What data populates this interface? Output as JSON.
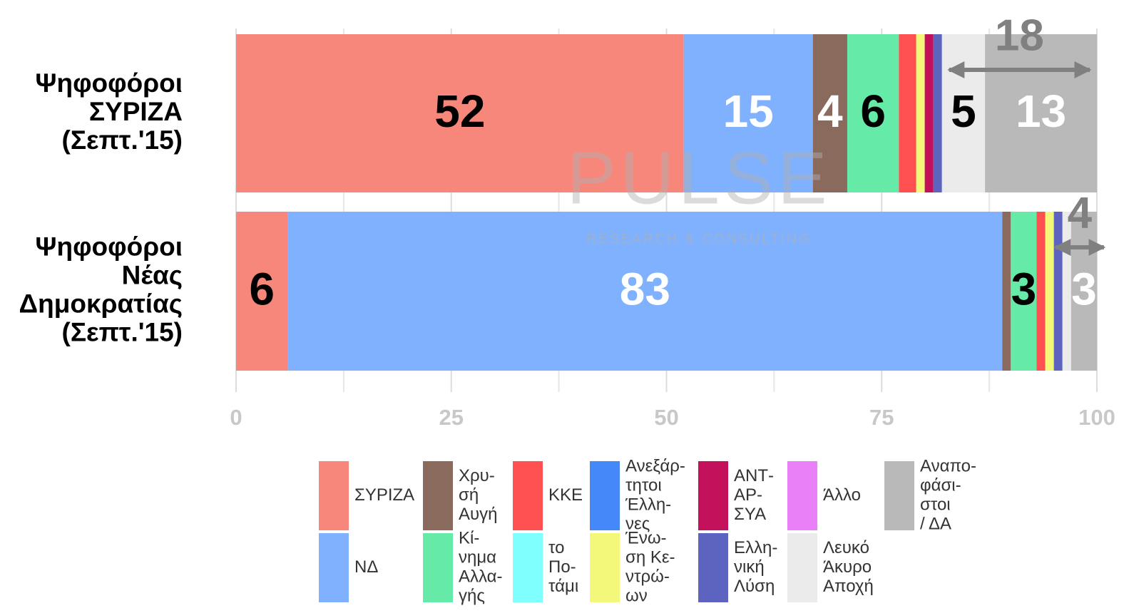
{
  "chart_data": {
    "type": "stacked_hbar",
    "categories": [
      [
        "Ψηφοφόροι",
        "ΣΥΡΙΖΑ",
        "(Σεπτ.'15)"
      ],
      [
        "Ψηφοφόροι",
        "Νέας",
        "Δημοκρατίας",
        "(Σεπτ.'15)"
      ]
    ],
    "xlim": [
      0,
      100
    ],
    "xticks": [
      0,
      25,
      50,
      75,
      100
    ],
    "minor_xticks": [
      12.5,
      37.5,
      62.5,
      87.5
    ],
    "grid": true,
    "watermark": [
      "PULSE",
      "RESEARCH & CONSULTING"
    ],
    "bracket_values": [
      18,
      4
    ],
    "series": [
      {
        "name": [
          "ΣΥΡΙΖΑ"
        ],
        "color": "#f8877b",
        "label_color": "#000",
        "values": [
          52,
          6
        ],
        "value_labels": [
          "52",
          "6"
        ]
      },
      {
        "name": [
          "ΝΔ"
        ],
        "color": "#80b1fe",
        "label_color": "#fff",
        "values": [
          15,
          83
        ],
        "value_labels": [
          "15",
          "83"
        ]
      },
      {
        "name": [
          "Χρυ-",
          "σή",
          "Αυγή"
        ],
        "color": "#8b6a5e",
        "label_color": "#fff",
        "values": [
          4,
          1
        ],
        "value_labels": [
          "4",
          null
        ]
      },
      {
        "name": [
          "Κί-",
          "νημα",
          "Αλλα-",
          "γής"
        ],
        "color": "#66eaa8",
        "label_color": "#000",
        "values": [
          6,
          3
        ],
        "value_labels": [
          "6",
          "3"
        ]
      },
      {
        "name": [
          "ΚΚΕ"
        ],
        "color": "#fe5050",
        "label_color": "#000",
        "values": [
          2,
          1
        ],
        "value_labels": [
          null,
          null
        ]
      },
      {
        "name": [
          "το",
          "Πο-",
          "τάμι"
        ],
        "color": "#80ffff",
        "label_color": "#000",
        "values": [
          0,
          0
        ],
        "value_labels": [
          null,
          null
        ]
      },
      {
        "name": [
          "Ανεξάρ-",
          "τητοι",
          "Έλλη-",
          "νες"
        ],
        "color": "#4488fa",
        "label_color": "#000",
        "values": [
          0,
          0
        ],
        "value_labels": [
          null,
          null
        ]
      },
      {
        "name": [
          "Ένω-",
          "ση Κε-",
          "ντρώ-",
          "ων"
        ],
        "color": "#f3f77a",
        "label_color": "#000",
        "values": [
          1,
          1
        ],
        "value_labels": [
          null,
          null
        ]
      },
      {
        "name": [
          "ΑΝΤ-",
          "ΑΡ-",
          "ΣΥΑ"
        ],
        "color": "#c2105a",
        "label_color": "#000",
        "values": [
          1,
          0
        ],
        "value_labels": [
          null,
          null
        ]
      },
      {
        "name": [
          "Ελλη-",
          "νική",
          "Λύση"
        ],
        "color": "#5c64c0",
        "label_color": "#000",
        "values": [
          1,
          1
        ],
        "value_labels": [
          null,
          null
        ]
      },
      {
        "name": [
          "Άλλο"
        ],
        "color": "#ea80f8",
        "label_color": "#000",
        "values": [
          0,
          0
        ],
        "value_labels": [
          null,
          null
        ]
      },
      {
        "name": [
          "Λευκό",
          "Άκυρο",
          "Αποχή"
        ],
        "color": "#ebebeb",
        "label_color": "#000",
        "values": [
          5,
          1
        ],
        "value_labels": [
          "5",
          null
        ]
      },
      {
        "name": [
          "Αναπο-",
          "φάσι-",
          "στοι",
          "/ ΔΑ"
        ],
        "color": "#b9b9b9",
        "label_color": "#fff",
        "values": [
          13,
          3
        ],
        "value_labels": [
          "13",
          "3"
        ]
      }
    ]
  }
}
